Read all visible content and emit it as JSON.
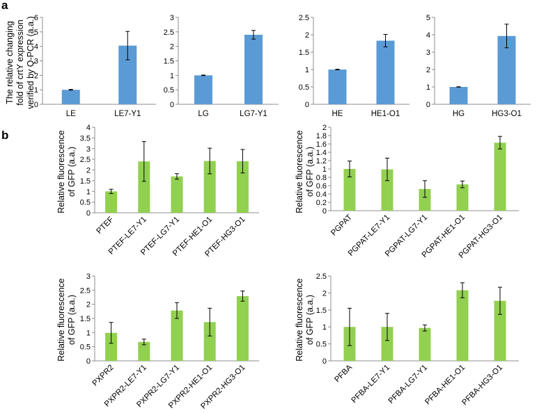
{
  "panel_labels": {
    "a": "a",
    "b": "b"
  },
  "colors": {
    "blue": "#5b9bd5",
    "green": "#92d050",
    "axis": "#8c8c8c"
  },
  "panel_a_ylabel": [
    "The relative changing",
    "fold of crtY expression",
    "verified by Q-PCR (a.a.)"
  ],
  "panel_b_ylabel": [
    "Relative fluorescence",
    "of GFP (a.a.)"
  ],
  "chart_data": [
    {
      "id": "a1",
      "type": "bar",
      "color": "blue",
      "categories": [
        "LE",
        "LE7-Y1"
      ],
      "values": [
        1.0,
        4.05
      ],
      "errors": [
        0.03,
        0.98
      ],
      "ylim": [
        0,
        6
      ],
      "yticks": [
        0,
        1,
        2,
        3,
        4,
        5,
        6
      ],
      "ytick_labels": [
        "0",
        "1",
        "2",
        "3",
        "4",
        "5",
        "6"
      ]
    },
    {
      "id": "a2",
      "type": "bar",
      "color": "blue",
      "categories": [
        "LG",
        "LG7-Y1"
      ],
      "values": [
        1.0,
        2.4
      ],
      "errors": [
        0.01,
        0.15
      ],
      "ylim": [
        0,
        3
      ],
      "yticks": [
        0,
        0.5,
        1,
        1.5,
        2,
        2.5,
        3
      ],
      "ytick_labels": [
        "0",
        "0.5",
        "1",
        "1.5",
        "2",
        "2.5",
        "3"
      ]
    },
    {
      "id": "a3",
      "type": "bar",
      "color": "blue",
      "categories": [
        "HE",
        "HE1-O1"
      ],
      "values": [
        1.0,
        1.83
      ],
      "errors": [
        0.01,
        0.18
      ],
      "ylim": [
        0,
        2.5
      ],
      "yticks": [
        0,
        0.5,
        1,
        1.5,
        2,
        2.5
      ],
      "ytick_labels": [
        "0",
        "0.5",
        "1",
        "1.5",
        "2",
        "2.5"
      ]
    },
    {
      "id": "a4",
      "type": "bar",
      "color": "blue",
      "categories": [
        "HG",
        "HG3-O1"
      ],
      "values": [
        1.0,
        3.93
      ],
      "errors": [
        0.01,
        0.68
      ],
      "ylim": [
        0,
        5
      ],
      "yticks": [
        0,
        1,
        2,
        3,
        4,
        5
      ],
      "ytick_labels": [
        "0",
        "1",
        "2",
        "3",
        "4",
        "5"
      ]
    },
    {
      "id": "b1",
      "type": "bar",
      "color": "green",
      "categories": [
        "PTEF",
        "PTEF-LE7-Y1",
        "PTEF-LG7-Y1",
        "PTEF-HE1-O1",
        "PTEF-HG3-O1"
      ],
      "values": [
        1.0,
        2.4,
        1.7,
        2.42,
        2.41
      ],
      "errors": [
        0.1,
        0.93,
        0.13,
        0.6,
        0.55
      ],
      "ylim": [
        0,
        4
      ],
      "yticks": [
        0,
        0.5,
        1,
        1.5,
        2,
        2.5,
        3,
        3.5,
        4
      ],
      "ytick_labels": [
        "0",
        "0.5",
        "1",
        "1.5",
        "2",
        "2.5",
        "3",
        "3.5",
        "4"
      ]
    },
    {
      "id": "b2",
      "type": "bar",
      "color": "green",
      "categories": [
        "PGPAT",
        "PGPAT-LE7-Y1",
        "PGPAT-LG7-Y1",
        "PGPAT-HE1-O1",
        "PGPAT-HG3-O1"
      ],
      "values": [
        1.0,
        0.99,
        0.52,
        0.63,
        1.63
      ],
      "errors": [
        0.19,
        0.27,
        0.2,
        0.08,
        0.15
      ],
      "ylim": [
        0,
        2
      ],
      "yticks": [
        0,
        0.2,
        0.4,
        0.6,
        0.8,
        1,
        1.2,
        1.4,
        1.6,
        1.8,
        2
      ],
      "ytick_labels": [
        "0",
        "0.2",
        "0.4",
        "0.6",
        "0.8",
        "1",
        "1.2",
        "1.4",
        "1.6",
        "1.8",
        "2"
      ]
    },
    {
      "id": "b3",
      "type": "bar",
      "color": "green",
      "categories": [
        "PXPR2",
        "PXPR2-LE7-Y1",
        "PXPR2-LG7-Y1",
        "PXPR2-HE1-O1",
        "PXPR2-HG3-O1"
      ],
      "values": [
        0.99,
        0.67,
        1.78,
        1.37,
        2.29
      ],
      "errors": [
        0.37,
        0.1,
        0.28,
        0.49,
        0.18
      ],
      "ylim": [
        0,
        3
      ],
      "yticks": [
        0,
        0.5,
        1,
        1.5,
        2,
        2.5,
        3
      ],
      "ytick_labels": [
        "0",
        "0.5",
        "1",
        "1.5",
        "2",
        "2.5",
        "3"
      ]
    },
    {
      "id": "b4",
      "type": "bar",
      "color": "green",
      "categories": [
        "PFBA",
        "PFBA-LE7-Y1",
        "PFBA-LG7-Y1",
        "PFBA-HE1-O1",
        "PFBA-HG3-O1"
      ],
      "values": [
        1.0,
        1.0,
        0.97,
        2.08,
        1.77
      ],
      "errors": [
        0.55,
        0.4,
        0.09,
        0.22,
        0.4
      ],
      "ylim": [
        0,
        2.5
      ],
      "yticks": [
        0,
        0.5,
        1,
        1.5,
        2,
        2.5
      ],
      "ytick_labels": [
        "0",
        "0.5",
        "1",
        "1.5",
        "2",
        "2.5"
      ]
    }
  ]
}
